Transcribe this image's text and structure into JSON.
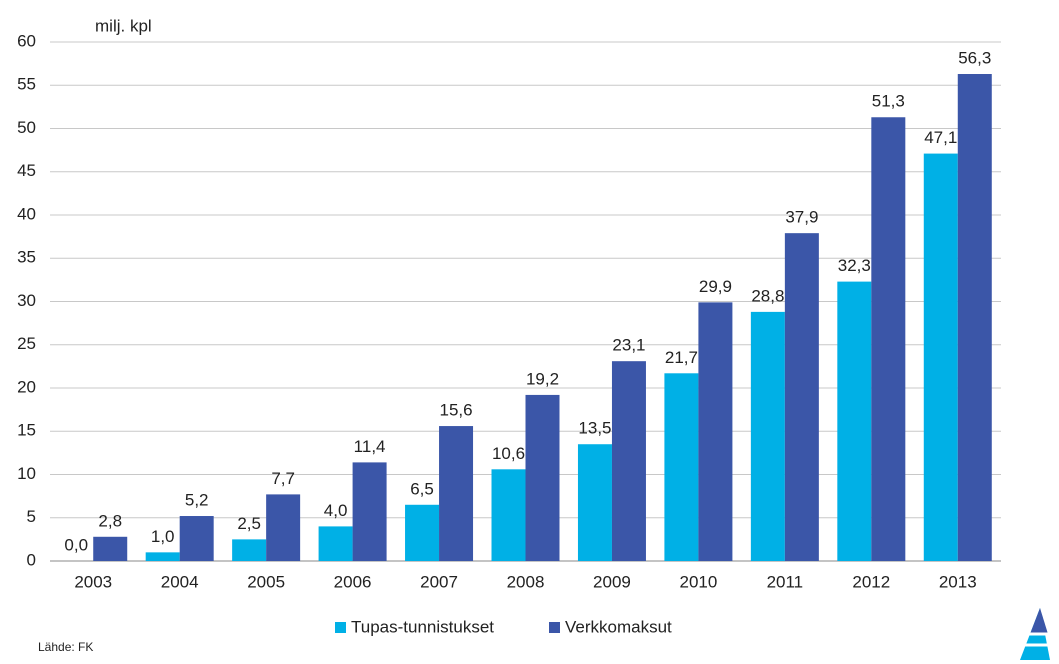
{
  "chart_data": {
    "type": "bar",
    "y_label": "milj. kpl",
    "source": "Lähde: FK",
    "categories": [
      "2003",
      "2004",
      "2005",
      "2006",
      "2007",
      "2008",
      "2009",
      "2010",
      "2011",
      "2012",
      "2013"
    ],
    "series": [
      {
        "name": "Tupas-tunnistukset",
        "color": "#00b0e6",
        "values": [
          0.0,
          1.0,
          2.5,
          4.0,
          6.5,
          10.6,
          13.5,
          21.7,
          28.8,
          32.3,
          47.1
        ],
        "value_labels": [
          "0,0",
          "1,0",
          "2,5",
          "4,0",
          "6,5",
          "10,6",
          "13,5",
          "21,7",
          "28,8",
          "32,3",
          "47,1"
        ]
      },
      {
        "name": "Verkkomaksut",
        "color": "#3b56a8",
        "values": [
          2.8,
          5.2,
          7.7,
          11.4,
          15.6,
          19.2,
          23.1,
          29.9,
          37.9,
          51.3,
          56.3
        ],
        "value_labels": [
          "2,8",
          "5,2",
          "7,7",
          "11,4",
          "15,6",
          "19,2",
          "23,1",
          "29,9",
          "37,9",
          "51,3",
          "56,3"
        ]
      }
    ],
    "ylim": [
      0,
      60
    ],
    "yticks": [
      0,
      5,
      10,
      15,
      20,
      25,
      30,
      35,
      40,
      45,
      50,
      55,
      60
    ],
    "grid": true
  }
}
